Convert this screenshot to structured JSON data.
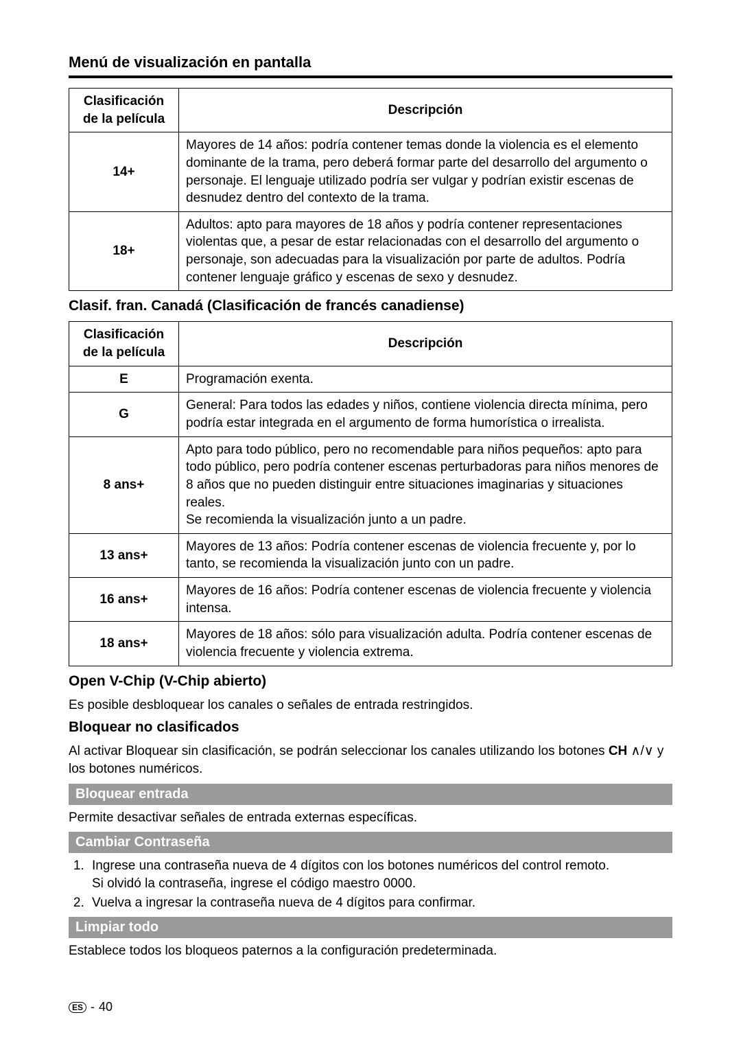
{
  "mainTitle": "Menú de visualización en pantalla",
  "table1": {
    "headers": {
      "rating": "Clasificación de la película",
      "desc": "Descripción"
    },
    "rows": [
      {
        "rating": "14+",
        "desc": "Mayores de 14 años: podría contener temas donde la violencia es el elemento dominante de la trama, pero deberá formar parte del desarrollo del argumento o personaje. El lenguaje utilizado podría ser vulgar y podrían existir escenas de desnudez dentro del contexto de la trama."
      },
      {
        "rating": "18+",
        "desc": "Adultos: apto para mayores de 18 años y podría contener representaciones violentas que, a pesar de estar relacionadas con el desarrollo del argumento o personaje, son adecuadas para la visualización por parte de adultos. Podría contener lenguaje gráfico y escenas de sexo y desnudez."
      }
    ]
  },
  "section2Title": "Clasif. fran. Canadá (Clasificación de francés canadiense)",
  "table2": {
    "headers": {
      "rating": "Clasificación de la película",
      "desc": "Descripción"
    },
    "rows": [
      {
        "rating": "E",
        "desc": "Programación exenta."
      },
      {
        "rating": "G",
        "desc": "General: Para todos las edades y niños, contiene violencia directa mínima, pero podría estar integrada en el argumento de forma humorística o irrealista."
      },
      {
        "rating": "8 ans+",
        "desc": "Apto para todo público, pero no recomendable para niños pequeños: apto para todo público, pero podría contener escenas perturbadoras para niños menores de 8 años que no pueden distinguir entre situaciones imaginarias y situaciones reales.\nSe recomienda la visualización junto a un padre."
      },
      {
        "rating": "13 ans+",
        "desc": "Mayores de 13 años: Podría contener escenas de violencia frecuente y, por lo tanto, se recomienda la visualización junto con un padre."
      },
      {
        "rating": "16 ans+",
        "desc": "Mayores de 16 años: Podría contener escenas de violencia frecuente y violencia intensa."
      },
      {
        "rating": "18 ans+",
        "desc": "Mayores de 18 años: sólo para visualización adulta. Podría contener escenas de violencia frecuente y violencia extrema."
      }
    ]
  },
  "openVChip": {
    "title": "Open V-Chip (V-Chip abierto)",
    "text": "Es posible desbloquear los canales o señales de entrada restringidos."
  },
  "bloquearNoClasif": {
    "title": "Bloquear no clasificados",
    "textPrefix": "Al activar Bloquear sin clasificación, se podrán seleccionar los canales utilizando los botones ",
    "chLabel": "CH",
    "textSuffix": " y los botones numéricos."
  },
  "bloquearEntrada": {
    "title": "Bloquear entrada",
    "text": "Permite desactivar señales de entrada externas específicas."
  },
  "cambiarContrasena": {
    "title": "Cambiar Contraseña",
    "step1a": "Ingrese una contraseña nueva de 4 dígitos con los botones numéricos del control remoto.",
    "step1b": "Si olvidó la contraseña, ingrese el código maestro 0000.",
    "step2": "Vuelva a ingresar la contraseña nueva de 4 dígitos para confirmar."
  },
  "limpiarTodo": {
    "title": "Limpiar todo",
    "text": "Establece todos los bloqueos paternos a la configuración predeterminada."
  },
  "footer": {
    "lang": "ES",
    "sep": "-",
    "page": "40"
  }
}
